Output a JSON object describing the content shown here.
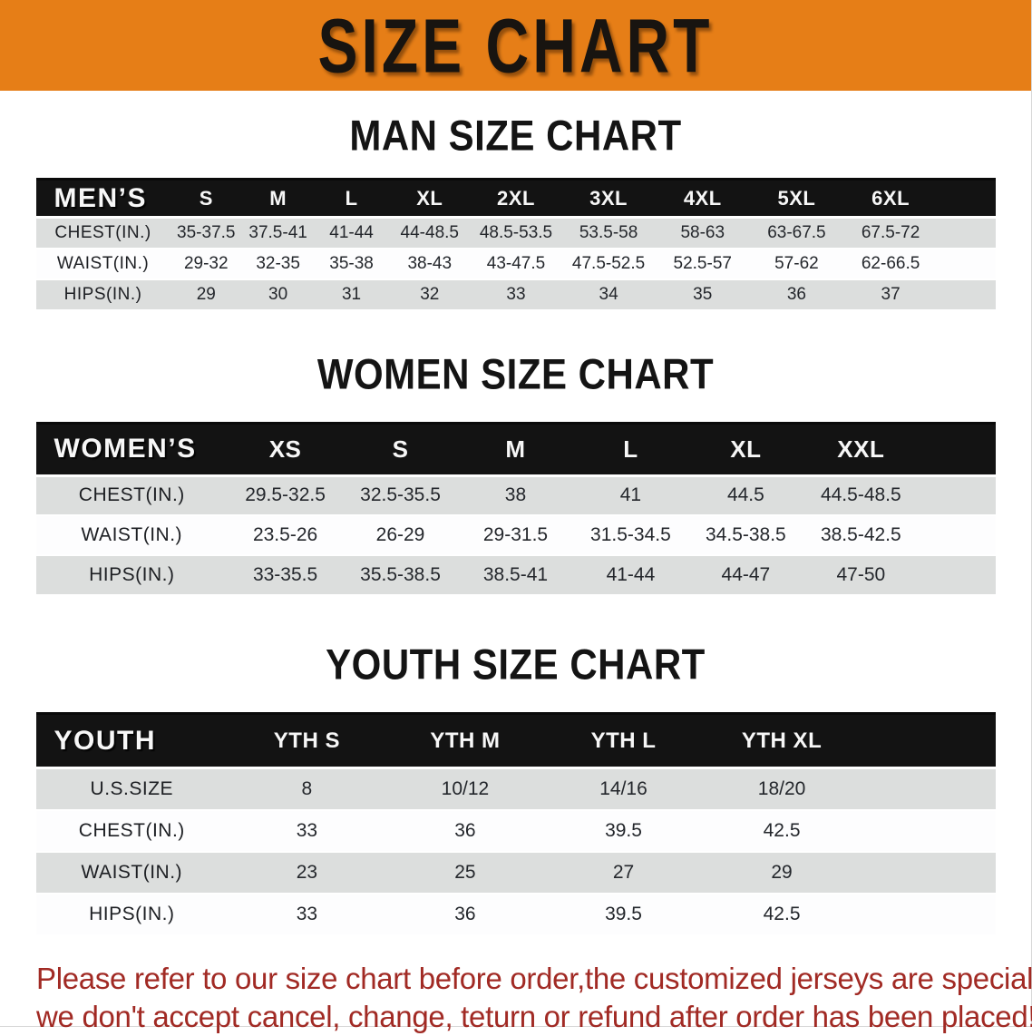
{
  "banner": {
    "title": "SIZE CHART",
    "bg_color": "#e67e17"
  },
  "colors": {
    "banner_orange": "#e67e17",
    "header_band_black": "#131313",
    "row_gray": "#dcdedd",
    "row_white": "#fdfdfe",
    "notice_red": "#a12a24"
  },
  "sections": [
    {
      "title": "MAN SIZE CHART",
      "header_label": "MEN’S",
      "columns": [
        "S",
        "M",
        "L",
        "XL",
        "2XL",
        "3XL",
        "4XL",
        "5XL",
        "6XL"
      ],
      "rows": [
        {
          "label": "CHEST(IN.)",
          "values": [
            "35-37.5",
            "37.5-41",
            "41-44",
            "44-48.5",
            "48.5-53.5",
            "53.5-58",
            "58-63",
            "63-67.5",
            "67.5-72"
          ]
        },
        {
          "label": "WAIST(IN.)",
          "values": [
            "29-32",
            "32-35",
            "35-38",
            "38-43",
            "43-47.5",
            "47.5-52.5",
            "52.5-57",
            "57-62",
            "62-66.5"
          ]
        },
        {
          "label": "HIPS(IN.)",
          "values": [
            "29",
            "30",
            "31",
            "32",
            "33",
            "34",
            "35",
            "36",
            "37"
          ]
        }
      ]
    },
    {
      "title": "WOMEN SIZE CHART",
      "header_label": "WOMEN’S",
      "columns": [
        "XS",
        "S",
        "M",
        "L",
        "XL",
        "XXL"
      ],
      "rows": [
        {
          "label": "CHEST(IN.)",
          "values": [
            "29.5-32.5",
            "32.5-35.5",
            "38",
            "41",
            "44.5",
            "44.5-48.5"
          ]
        },
        {
          "label": "WAIST(IN.)",
          "values": [
            "23.5-26",
            "26-29",
            "29-31.5",
            "31.5-34.5",
            "34.5-38.5",
            "38.5-42.5"
          ]
        },
        {
          "label": "HIPS(IN.)",
          "values": [
            "33-35.5",
            "35.5-38.5",
            "38.5-41",
            "41-44",
            "44-47",
            "47-50"
          ]
        }
      ]
    },
    {
      "title": "YOUTH SIZE CHART",
      "header_label": "YOUTH",
      "columns": [
        "YTH S",
        "YTH M",
        "YTH L",
        "YTH XL"
      ],
      "rows": [
        {
          "label": "U.S.SIZE",
          "values": [
            "8",
            "10/12",
            "14/16",
            "18/20"
          ]
        },
        {
          "label": "CHEST(IN.)",
          "values": [
            "33",
            "36",
            "39.5",
            "42.5"
          ]
        },
        {
          "label": "WAIST(IN.)",
          "values": [
            "23",
            "25",
            "27",
            "29"
          ]
        },
        {
          "label": "HIPS(IN.)",
          "values": [
            "33",
            "36",
            "39.5",
            "42.5"
          ]
        }
      ]
    }
  ],
  "footer": {
    "line1": "Please refer to our size chart before order,the customized jerseys are special products,",
    "line2": "we don't accept cancel, change, teturn or refund after order has been placed!"
  }
}
